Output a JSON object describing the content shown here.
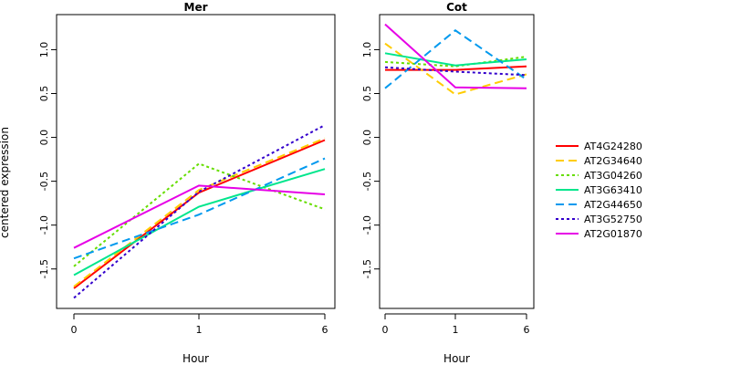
{
  "chart_data": {
    "type": "line",
    "ylabel": "centered expression",
    "ylim": [
      -1.95,
      1.4
    ],
    "yticks": [
      "-1.5",
      "-1.0",
      "-0.5",
      "0.0",
      "0.5",
      "1.0"
    ],
    "x_tick_labels": [
      "0",
      "1",
      "6"
    ],
    "legend_placement": "right",
    "panels": [
      {
        "title": "Mer",
        "xlabel": "Hour",
        "series": [
          {
            "name": "AT4G24280",
            "color": "#ff0000",
            "dash": "solid",
            "values": [
              -1.72,
              -0.63,
              -0.03
            ]
          },
          {
            "name": "AT2G34640",
            "color": "#ffcc00",
            "dash": "dashed",
            "values": [
              -1.7,
              -0.6,
              -0.01
            ]
          },
          {
            "name": "AT3G04260",
            "color": "#66dd00",
            "dash": "dotted",
            "values": [
              -1.47,
              -0.3,
              -0.82
            ]
          },
          {
            "name": "AT3G63410",
            "color": "#00e68c",
            "dash": "solid",
            "values": [
              -1.57,
              -0.79,
              -0.36
            ]
          },
          {
            "name": "AT2G44650",
            "color": "#0099ee",
            "dash": "dashed",
            "values": [
              -1.38,
              -0.88,
              -0.24
            ]
          },
          {
            "name": "AT3G52750",
            "color": "#3300cc",
            "dash": "dotted",
            "values": [
              -1.83,
              -0.62,
              0.14
            ]
          },
          {
            "name": "AT2G01870",
            "color": "#e600e6",
            "dash": "solid",
            "values": [
              -1.26,
              -0.55,
              -0.65
            ]
          }
        ]
      },
      {
        "title": "Cot",
        "xlabel": "Hour",
        "series": [
          {
            "name": "AT4G24280",
            "color": "#ff0000",
            "dash": "solid",
            "values": [
              0.77,
              0.77,
              0.81
            ]
          },
          {
            "name": "AT2G34640",
            "color": "#ffcc00",
            "dash": "dashed",
            "values": [
              1.07,
              0.49,
              0.72
            ]
          },
          {
            "name": "AT3G04260",
            "color": "#66dd00",
            "dash": "dotted",
            "values": [
              0.86,
              0.81,
              0.92
            ]
          },
          {
            "name": "AT3G63410",
            "color": "#00e68c",
            "dash": "solid",
            "values": [
              0.96,
              0.82,
              0.89
            ]
          },
          {
            "name": "AT2G44650",
            "color": "#0099ee",
            "dash": "dashed",
            "values": [
              0.56,
              1.22,
              0.66
            ]
          },
          {
            "name": "AT3G52750",
            "color": "#3300cc",
            "dash": "dotted",
            "values": [
              0.8,
              0.75,
              0.71
            ]
          },
          {
            "name": "AT2G01870",
            "color": "#e600e6",
            "dash": "solid",
            "values": [
              1.29,
              0.57,
              0.56
            ]
          }
        ]
      }
    ]
  }
}
